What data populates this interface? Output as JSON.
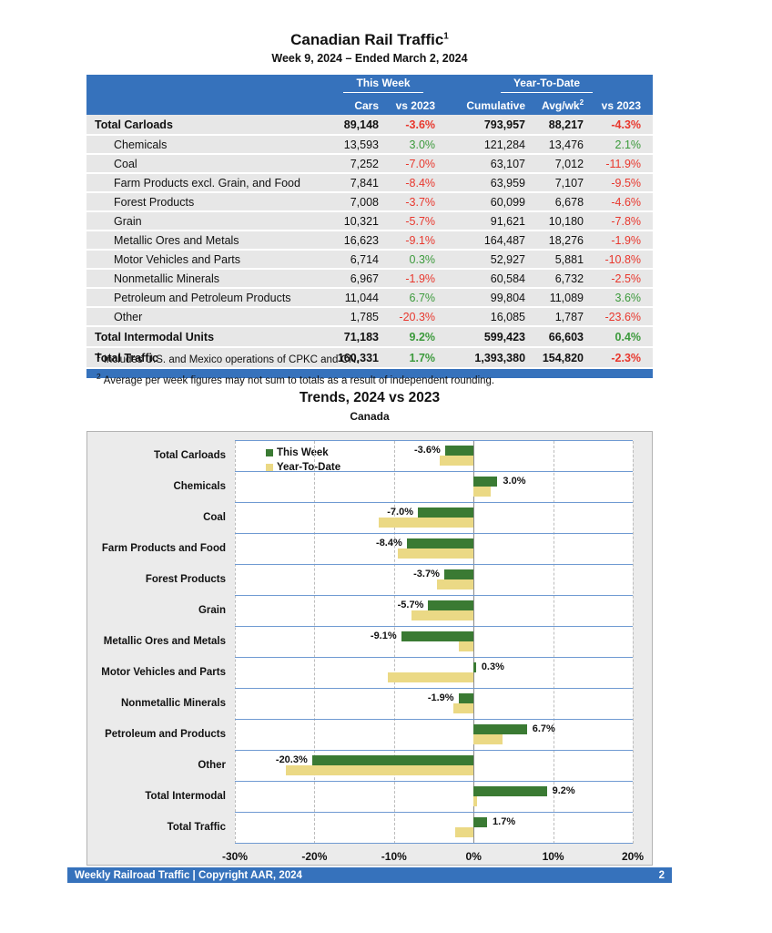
{
  "page": {
    "title": "Canadian Rail Traffic",
    "title_superscript": "1",
    "subtitle": "Week 9, 2024 – Ended March 2, 2024"
  },
  "table": {
    "group_headers": {
      "this_week": "This Week",
      "year_to_date": "Year-To-Date"
    },
    "columns": {
      "cars": "Cars",
      "cars_vs": "vs 2023",
      "cumulative": "Cumulative",
      "avgwk": "Avg/wk",
      "avgwk_superscript": "2",
      "ytd_vs": "vs 2023"
    },
    "rows": [
      {
        "label": "Total Carloads",
        "style": "total",
        "cars": "89,148",
        "cars_vs": "-3.6%",
        "cumulative": "793,957",
        "avgwk": "88,217",
        "ytd_vs": "-4.3%"
      },
      {
        "label": "Chemicals",
        "style": "item",
        "cars": "13,593",
        "cars_vs": "3.0%",
        "cumulative": "121,284",
        "avgwk": "13,476",
        "ytd_vs": "2.1%"
      },
      {
        "label": "Coal",
        "style": "item",
        "cars": "7,252",
        "cars_vs": "-7.0%",
        "cumulative": "63,107",
        "avgwk": "7,012",
        "ytd_vs": "-11.9%"
      },
      {
        "label": "Farm Products excl. Grain, and Food",
        "style": "item",
        "cars": "7,841",
        "cars_vs": "-8.4%",
        "cumulative": "63,959",
        "avgwk": "7,107",
        "ytd_vs": "-9.5%"
      },
      {
        "label": "Forest Products",
        "style": "item",
        "cars": "7,008",
        "cars_vs": "-3.7%",
        "cumulative": "60,099",
        "avgwk": "6,678",
        "ytd_vs": "-4.6%"
      },
      {
        "label": "Grain",
        "style": "item",
        "cars": "10,321",
        "cars_vs": "-5.7%",
        "cumulative": "91,621",
        "avgwk": "10,180",
        "ytd_vs": "-7.8%"
      },
      {
        "label": "Metallic Ores and Metals",
        "style": "item",
        "cars": "16,623",
        "cars_vs": "-9.1%",
        "cumulative": "164,487",
        "avgwk": "18,276",
        "ytd_vs": "-1.9%"
      },
      {
        "label": "Motor Vehicles and Parts",
        "style": "item",
        "cars": "6,714",
        "cars_vs": "0.3%",
        "cumulative": "52,927",
        "avgwk": "5,881",
        "ytd_vs": "-10.8%"
      },
      {
        "label": "Nonmetallic Minerals",
        "style": "item",
        "cars": "6,967",
        "cars_vs": "-1.9%",
        "cumulative": "60,584",
        "avgwk": "6,732",
        "ytd_vs": "-2.5%"
      },
      {
        "label": "Petroleum and Petroleum Products",
        "style": "item",
        "cars": "11,044",
        "cars_vs": "6.7%",
        "cumulative": "99,804",
        "avgwk": "11,089",
        "ytd_vs": "3.6%"
      },
      {
        "label": "Other",
        "style": "item",
        "cars": "1,785",
        "cars_vs": "-20.3%",
        "cumulative": "16,085",
        "avgwk": "1,787",
        "ytd_vs": "-23.6%"
      },
      {
        "label": "Total Intermodal Units",
        "style": "total",
        "cars": "71,183",
        "cars_vs": "9.2%",
        "cumulative": "599,423",
        "avgwk": "66,603",
        "ytd_vs": "0.4%"
      },
      {
        "label": "Total Traffic",
        "style": "total",
        "cars": "160,331",
        "cars_vs": "1.7%",
        "cumulative": "1,393,380",
        "avgwk": "154,820",
        "ytd_vs": "-2.3%"
      }
    ]
  },
  "footnotes": [
    {
      "sup": "1",
      "text": "Includes U.S. and Mexico operations of CPKC and CN."
    },
    {
      "sup": "2",
      "text": "Average per week figures may not sum to totals as a result of independent rounding."
    }
  ],
  "chart_data": {
    "type": "bar",
    "orientation": "horizontal",
    "title": "Trends, 2024 vs 2023",
    "subtitle": "Canada",
    "categories": [
      "Total Carloads",
      "Chemicals",
      "Coal",
      "Farm Products and Food",
      "Forest Products",
      "Grain",
      "Metallic Ores and Metals",
      "Motor Vehicles and Parts",
      "Nonmetallic Minerals",
      "Petroleum and Products",
      "Other",
      "Total Intermodal",
      "Total Traffic"
    ],
    "series": [
      {
        "name": "This Week",
        "color": "#3A7A33",
        "values": [
          -3.6,
          3.0,
          -7.0,
          -8.4,
          -3.7,
          -5.7,
          -9.1,
          0.3,
          -1.9,
          6.7,
          -20.3,
          9.2,
          1.7
        ]
      },
      {
        "name": "Year-To-Date",
        "color": "#EBD985",
        "values": [
          -4.3,
          2.1,
          -11.9,
          -9.5,
          -4.6,
          -7.8,
          -1.9,
          -10.8,
          -2.5,
          3.6,
          -23.6,
          0.4,
          -2.3
        ]
      }
    ],
    "data_labels": [
      "-3.6%",
      "3.0%",
      "-7.0%",
      "-8.4%",
      "-3.7%",
      "-5.7%",
      "-9.1%",
      "0.3%",
      "-1.9%",
      "6.7%",
      "-20.3%",
      "9.2%",
      "1.7%"
    ],
    "xlim": [
      -30,
      20
    ],
    "x_ticks": [
      {
        "value": -30,
        "label": "-30%"
      },
      {
        "value": -20,
        "label": "-20%"
      },
      {
        "value": -10,
        "label": "-10%"
      },
      {
        "value": 0,
        "label": "0%"
      },
      {
        "value": 10,
        "label": "10%"
      },
      {
        "value": 20,
        "label": "20%"
      }
    ],
    "legend_position": "top-left-inside",
    "grid": "vertical-dashed"
  },
  "footer": {
    "text": "Weekly Railroad Traffic | Copyright AAR, 2024",
    "page_number": "2"
  },
  "colors": {
    "header_blue": "#3672BC",
    "positive_green": "#3C9A3C",
    "negative_red": "#E8372D",
    "bar_green": "#3A7A33",
    "bar_tan": "#EBD985",
    "row_gray": "#e7e7e7",
    "chart_bg": "#EBEBEB",
    "row_line_blue": "#6F9AD2"
  }
}
